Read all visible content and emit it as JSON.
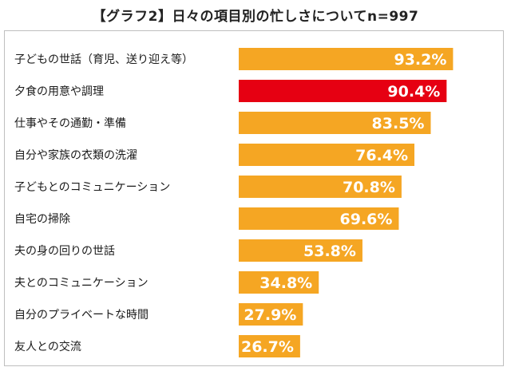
{
  "chart_data": {
    "type": "bar",
    "orientation": "horizontal",
    "title": "【グラフ2】日々の項目別の忙しさについてn=997",
    "categories": [
      "子どもの世話（育児、送り迎え等）",
      "夕食の用意や調理",
      "仕事やその通勤・準備",
      "自分や家族の衣類の洗濯",
      "子どもとのコミュニケーション",
      "自宅の掃除",
      "夫の身の回りの世話",
      "夫とのコミュニケーション",
      "自分のプライベートな時間",
      "友人との交流"
    ],
    "values": [
      93.2,
      90.4,
      83.5,
      76.4,
      70.8,
      69.6,
      53.8,
      34.8,
      27.9,
      26.7
    ],
    "value_labels": [
      "93.2%",
      "90.4%",
      "83.5%",
      "76.4%",
      "70.8%",
      "69.6%",
      "53.8%",
      "34.8%",
      "27.9%",
      "26.7%"
    ],
    "xlim": [
      0,
      100
    ],
    "grid": false,
    "legend": "none",
    "colors": {
      "bar": "#f5a623",
      "highlight": "#e60012",
      "highlight_index": 1
    }
  }
}
